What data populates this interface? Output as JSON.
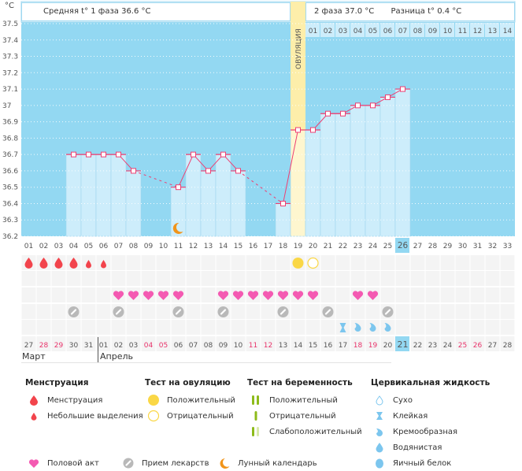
{
  "header": {
    "unit_label": "°C",
    "phase1_text": "Средняя t° 1 фаза 36.6 °C",
    "phase2_text": "2 фаза 37.0 °C",
    "diff_text": "Разница t° 0.4 °C",
    "ovulation_label": "ОВУЛЯЦИЯ"
  },
  "colors": {
    "plot_bg": "#93d8f2",
    "bar_fill": "#cdedfb",
    "bar_stroke": "#9fd6ee",
    "ovulation_band": "#fdeeaa",
    "line": "#ee3f72",
    "weekend": "#e8336a",
    "menstruation": "#f2444c",
    "heart": "#f45ab2",
    "pill": "#b9b9b9",
    "ovu_test": "#fad746",
    "cervical": "#7cc6ee",
    "moon": "#f1941a",
    "preg_test": "#8dbb1a",
    "preg_test_light": "#d8eaa9"
  },
  "chart_data": {
    "type": "line",
    "title": "",
    "xlabel": "",
    "ylabel": "°C",
    "ylim": [
      36.2,
      37.5
    ],
    "yticks": [
      "37.5",
      "37.4",
      "37.3",
      "37.2",
      "37.1",
      "37",
      "36.9",
      "36.8",
      "36.7",
      "36.6",
      "36.5",
      "36.4",
      "36.3",
      "36.2"
    ],
    "ytick_values": [
      37.5,
      37.4,
      37.3,
      37.2,
      37.1,
      37.0,
      36.9,
      36.8,
      36.7,
      36.6,
      36.5,
      36.4,
      36.3,
      36.2
    ],
    "cycle_days": [
      "01",
      "02",
      "03",
      "04",
      "05",
      "06",
      "07",
      "08",
      "09",
      "10",
      "11",
      "12",
      "13",
      "14",
      "15",
      "16",
      "17",
      "18",
      "19",
      "20",
      "21",
      "22",
      "23",
      "24",
      "25",
      "26",
      "27",
      "28",
      "29",
      "30",
      "31",
      "32",
      "33"
    ],
    "current_day": "26",
    "ovulation_day": "19",
    "post_ovulation_days": [
      "01",
      "02",
      "03",
      "04",
      "05",
      "06",
      "07",
      "08",
      "09",
      "10",
      "11",
      "12",
      "13",
      "14"
    ],
    "temperatures": [
      {
        "day": 4,
        "value": 36.7
      },
      {
        "day": 5,
        "value": 36.7
      },
      {
        "day": 6,
        "value": 36.7
      },
      {
        "day": 7,
        "value": 36.7
      },
      {
        "day": 8,
        "value": 36.6
      },
      {
        "day": 11,
        "value": 36.5
      },
      {
        "day": 12,
        "value": 36.7
      },
      {
        "day": 13,
        "value": 36.6
      },
      {
        "day": 14,
        "value": 36.7
      },
      {
        "day": 15,
        "value": 36.6
      },
      {
        "day": 18,
        "value": 36.4
      },
      {
        "day": 19,
        "value": 36.85
      },
      {
        "day": 20,
        "value": 36.85
      },
      {
        "day": 21,
        "value": 36.95
      },
      {
        "day": 22,
        "value": 36.95
      },
      {
        "day": 23,
        "value": 37.0
      },
      {
        "day": 24,
        "value": 37.0
      },
      {
        "day": 25,
        "value": 37.05
      },
      {
        "day": 26,
        "value": 37.1
      }
    ],
    "moon_days": [
      11
    ],
    "events": {
      "menstruation_heavy": [
        1,
        2,
        3,
        4
      ],
      "menstruation_light": [
        5,
        6
      ],
      "ovulation_test_positive": [
        19
      ],
      "ovulation_test_negative": [
        20
      ],
      "intercourse": [
        7,
        8,
        9,
        10,
        11,
        14,
        15,
        16,
        17,
        18,
        19,
        20,
        23,
        24
      ],
      "medication": [
        4,
        7,
        11,
        14,
        18,
        21,
        25
      ],
      "cervical_sticky": [
        22
      ],
      "cervical_creamy": [
        23,
        24,
        25
      ]
    },
    "calendar_dates": [
      {
        "d": "27",
        "w": false
      },
      {
        "d": "28",
        "w": true
      },
      {
        "d": "29",
        "w": true
      },
      {
        "d": "30",
        "w": false
      },
      {
        "d": "31",
        "w": false
      },
      {
        "d": "01",
        "w": false
      },
      {
        "d": "02",
        "w": false
      },
      {
        "d": "03",
        "w": false
      },
      {
        "d": "04",
        "w": true
      },
      {
        "d": "05",
        "w": true
      },
      {
        "d": "06",
        "w": false
      },
      {
        "d": "07",
        "w": false
      },
      {
        "d": "08",
        "w": false
      },
      {
        "d": "09",
        "w": false
      },
      {
        "d": "10",
        "w": false
      },
      {
        "d": "11",
        "w": true
      },
      {
        "d": "12",
        "w": true
      },
      {
        "d": "13",
        "w": false
      },
      {
        "d": "14",
        "w": false
      },
      {
        "d": "15",
        "w": false
      },
      {
        "d": "16",
        "w": false
      },
      {
        "d": "17",
        "w": false
      },
      {
        "d": "18",
        "w": true
      },
      {
        "d": "19",
        "w": true
      },
      {
        "d": "20",
        "w": false
      },
      {
        "d": "21",
        "w": false,
        "today": true
      },
      {
        "d": "22",
        "w": false
      },
      {
        "d": "23",
        "w": false
      },
      {
        "d": "24",
        "w": false
      },
      {
        "d": "25",
        "w": true
      },
      {
        "d": "26",
        "w": true
      },
      {
        "d": "27",
        "w": false
      },
      {
        "d": "28",
        "w": false
      }
    ],
    "months": [
      "Март",
      "Апрель"
    ]
  },
  "legend": {
    "menstruation": {
      "title": "Менструация",
      "items": [
        "Менструация",
        "Небольшие выделения"
      ]
    },
    "ovulation_test": {
      "title": "Тест на овуляцию",
      "items": [
        "Положительный",
        "Отрицательный"
      ]
    },
    "pregnancy_test": {
      "title": "Тест на беременность",
      "items": [
        "Положительный",
        "Отрицательный",
        "Слабоположительный"
      ]
    },
    "cervical": {
      "title": "Цервикальная жидкость",
      "items": [
        "Сухо",
        "Клейкая",
        "Кремообразная",
        "Водянистая",
        "Яичный белок"
      ]
    },
    "bottom": [
      "Половой акт",
      "Прием лекарств",
      "Лунный календарь"
    ]
  }
}
